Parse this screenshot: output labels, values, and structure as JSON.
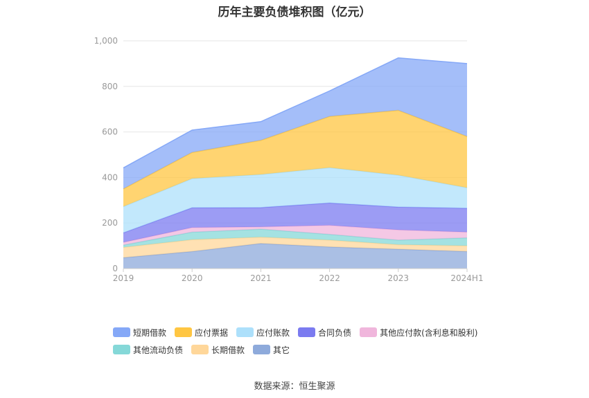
{
  "title": "历年主要负债堆积图（亿元）",
  "source": "数据来源：恒生聚源",
  "chart_data": {
    "type": "area",
    "stacked": true,
    "x": [
      "2019",
      "2020",
      "2021",
      "2022",
      "2023",
      "2024H1"
    ],
    "y_ticks": [
      "0",
      "200",
      "400",
      "600",
      "800",
      "1,000"
    ],
    "ylim": [
      0,
      1000
    ],
    "grid": true,
    "legend_position": "bottom",
    "series": [
      {
        "name": "其它",
        "color": "#8eaadb",
        "values": [
          48,
          75,
          110,
          95,
          85,
          75
        ]
      },
      {
        "name": "长期借款",
        "color": "#ffd79a",
        "values": [
          45,
          52,
          28,
          30,
          20,
          25
        ]
      },
      {
        "name": "其他流动负债",
        "color": "#85d8d8",
        "values": [
          10,
          33,
          35,
          25,
          20,
          35
        ]
      },
      {
        "name": "其他应付款(含利息和股利)",
        "color": "#f0b6dc",
        "values": [
          12,
          20,
          10,
          40,
          45,
          25
        ]
      },
      {
        "name": "合同负债",
        "color": "#7b7bf0",
        "values": [
          42,
          87,
          85,
          98,
          100,
          105
        ]
      },
      {
        "name": "应付账款",
        "color": "#ade0fb",
        "values": [
          115,
          128,
          145,
          155,
          140,
          90
        ]
      },
      {
        "name": "应付票据",
        "color": "#ffc642",
        "values": [
          78,
          115,
          150,
          225,
          285,
          225
        ]
      },
      {
        "name": "短期借款",
        "color": "#85a8f7",
        "values": [
          92,
          98,
          82,
          112,
          230,
          320
        ]
      }
    ]
  },
  "legend_rows": [
    [
      "短期借款",
      "应付票据",
      "应付账款",
      "合同负债",
      "其他应付款(含利息和股利)"
    ],
    [
      "其他流动负债",
      "长期借款",
      "其它"
    ]
  ]
}
